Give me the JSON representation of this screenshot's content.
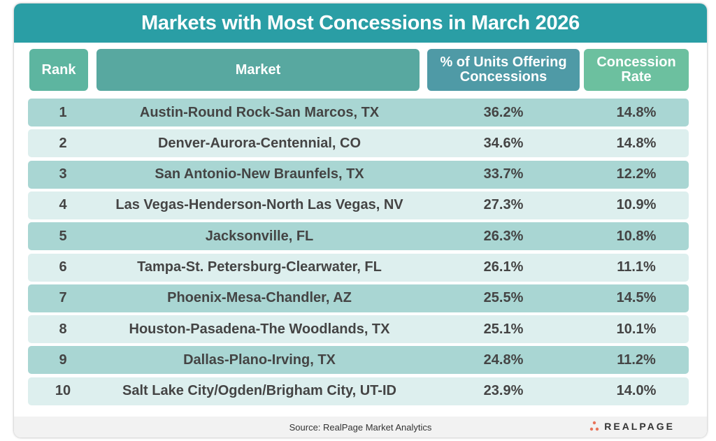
{
  "title": "Markets with Most Concessions in March 2026",
  "headers": [
    "Rank",
    "Market",
    "% of Units Offering Concessions",
    "Concession Rate"
  ],
  "colors": {
    "title_bg": "#2a9ea5",
    "rank_header": "#5db5a0",
    "market_header": "#58a8a0",
    "units_header": "#4f9aa6",
    "rate_header": "#6cc09f",
    "row_dark": "#a9d6d3",
    "row_light": "#ddefee",
    "logo_dots": "#e8735a"
  },
  "chart_data": {
    "type": "table",
    "title": "Markets with Most Concessions in March 2026",
    "columns": [
      "Rank",
      "Market",
      "% of Units Offering Concessions",
      "Concession Rate"
    ],
    "rows": [
      {
        "rank": "1",
        "market": "Austin-Round Rock-San Marcos, TX",
        "units": "36.2%",
        "rate": "14.8%"
      },
      {
        "rank": "2",
        "market": "Denver-Aurora-Centennial, CO",
        "units": "34.6%",
        "rate": "14.8%"
      },
      {
        "rank": "3",
        "market": "San Antonio-New Braunfels, TX",
        "units": "33.7%",
        "rate": "12.2%"
      },
      {
        "rank": "4",
        "market": "Las Vegas-Henderson-North Las Vegas, NV",
        "units": "27.3%",
        "rate": "10.9%"
      },
      {
        "rank": "5",
        "market": "Jacksonville, FL",
        "units": "26.3%",
        "rate": "10.8%"
      },
      {
        "rank": "6",
        "market": "Tampa-St. Petersburg-Clearwater, FL",
        "units": "26.1%",
        "rate": "11.1%"
      },
      {
        "rank": "7",
        "market": "Phoenix-Mesa-Chandler, AZ",
        "units": "25.5%",
        "rate": "14.5%"
      },
      {
        "rank": "8",
        "market": "Houston-Pasadena-The Woodlands, TX",
        "units": "25.1%",
        "rate": "10.1%"
      },
      {
        "rank": "9",
        "market": "Dallas-Plano-Irving, TX",
        "units": "24.8%",
        "rate": "11.2%"
      },
      {
        "rank": "10",
        "market": "Salt Lake City/Ogden/Brigham City, UT-ID",
        "units": "23.9%",
        "rate": "14.0%"
      }
    ]
  },
  "footer": {
    "source": "Source:  RealPage Market Analytics",
    "logo": "REALPAGE"
  }
}
